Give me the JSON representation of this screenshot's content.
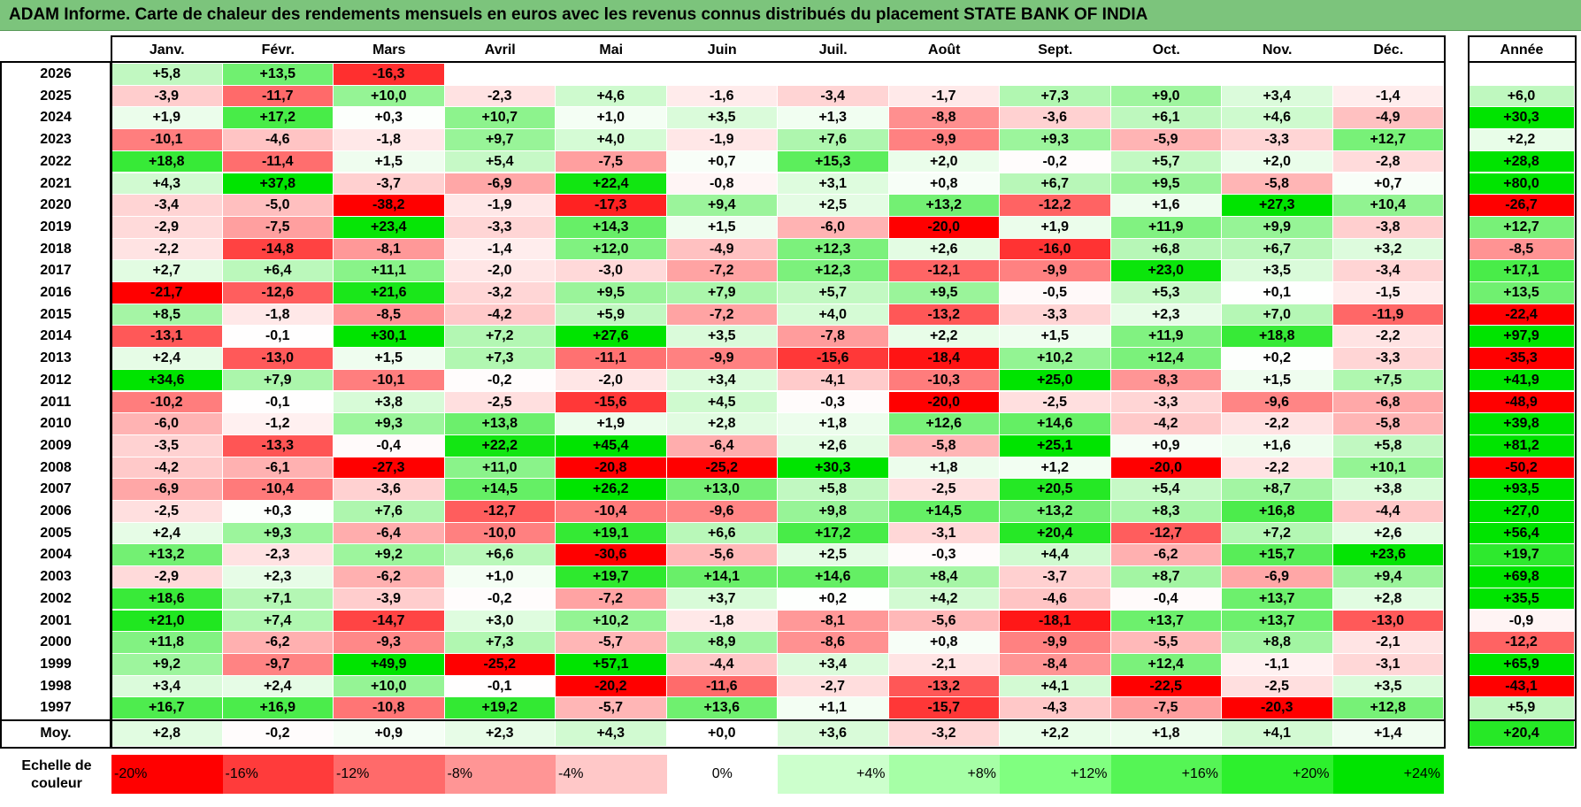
{
  "title": "ADAM Informe. Carte de chaleur des rendements mensuels en euros avec les revenus connus distribués du placement STATE BANK OF INDIA",
  "chart_data": {
    "type": "heatmap",
    "title": "ADAM Informe. Carte de chaleur des rendements mensuels en euros avec les revenus connus distribués du placement STATE BANK OF INDIA",
    "months": [
      "Janv.",
      "Févr.",
      "Mars",
      "Avril",
      "Mai",
      "Juin",
      "Juil.",
      "Août",
      "Sept.",
      "Oct.",
      "Nov.",
      "Déc."
    ],
    "year_header": "Année",
    "rows": [
      {
        "year": "2026",
        "months": [
          "+5,8",
          "+13,5",
          "-16,3",
          "",
          "",
          "",
          "",
          "",
          "",
          "",
          "",
          ""
        ],
        "annual": ""
      },
      {
        "year": "2025",
        "months": [
          "-3,9",
          "-11,7",
          "+10,0",
          "-2,3",
          "+4,6",
          "-1,6",
          "-3,4",
          "-1,7",
          "+7,3",
          "+9,0",
          "+3,4",
          "-1,4"
        ],
        "annual": "+6,0"
      },
      {
        "year": "2024",
        "months": [
          "+1,9",
          "+17,2",
          "+0,3",
          "+10,7",
          "+1,0",
          "+3,5",
          "+1,3",
          "-8,8",
          "-3,6",
          "+6,1",
          "+4,6",
          "-4,9"
        ],
        "annual": "+30,3"
      },
      {
        "year": "2023",
        "months": [
          "-10,1",
          "-4,6",
          "-1,8",
          "+9,7",
          "+4,0",
          "-1,9",
          "+7,6",
          "-9,9",
          "+9,3",
          "-5,9",
          "-3,3",
          "+12,7"
        ],
        "annual": "+2,2"
      },
      {
        "year": "2022",
        "months": [
          "+18,8",
          "-11,4",
          "+1,5",
          "+5,4",
          "-7,5",
          "+0,7",
          "+15,3",
          "+2,0",
          "-0,2",
          "+5,7",
          "+2,0",
          "-2,8"
        ],
        "annual": "+28,8"
      },
      {
        "year": "2021",
        "months": [
          "+4,3",
          "+37,8",
          "-3,7",
          "-6,9",
          "+22,4",
          "-0,8",
          "+3,1",
          "+0,8",
          "+6,7",
          "+9,5",
          "-5,8",
          "+0,7"
        ],
        "annual": "+80,0"
      },
      {
        "year": "2020",
        "months": [
          "-3,4",
          "-5,0",
          "-38,2",
          "-1,9",
          "-17,3",
          "+9,4",
          "+2,5",
          "+13,2",
          "-12,2",
          "+1,6",
          "+27,3",
          "+10,4"
        ],
        "annual": "-26,7"
      },
      {
        "year": "2019",
        "months": [
          "-2,9",
          "-7,5",
          "+23,4",
          "-3,3",
          "+14,3",
          "+1,5",
          "-6,0",
          "-20,0",
          "+1,9",
          "+11,9",
          "+9,9",
          "-3,8"
        ],
        "annual": "+12,7"
      },
      {
        "year": "2018",
        "months": [
          "-2,2",
          "-14,8",
          "-8,1",
          "-1,4",
          "+12,0",
          "-4,9",
          "+12,3",
          "+2,6",
          "-16,0",
          "+6,8",
          "+6,7",
          "+3,2"
        ],
        "annual": "-8,5"
      },
      {
        "year": "2017",
        "months": [
          "+2,7",
          "+6,4",
          "+11,1",
          "-2,0",
          "-3,0",
          "-7,2",
          "+12,3",
          "-12,1",
          "-9,9",
          "+23,0",
          "+3,5",
          "-3,4"
        ],
        "annual": "+17,1"
      },
      {
        "year": "2016",
        "months": [
          "-21,7",
          "-12,6",
          "+21,6",
          "-3,2",
          "+9,5",
          "+7,9",
          "+5,7",
          "+9,5",
          "-0,5",
          "+5,3",
          "+0,1",
          "-1,5"
        ],
        "annual": "+13,5"
      },
      {
        "year": "2015",
        "months": [
          "+8,5",
          "-1,8",
          "-8,5",
          "-4,2",
          "+5,9",
          "-7,2",
          "+4,0",
          "-13,2",
          "-3,3",
          "+2,3",
          "+7,0",
          "-11,9"
        ],
        "annual": "-22,4"
      },
      {
        "year": "2014",
        "months": [
          "-13,1",
          "-0,1",
          "+30,1",
          "+7,2",
          "+27,6",
          "+3,5",
          "-7,8",
          "+2,2",
          "+1,5",
          "+11,9",
          "+18,8",
          "-2,2"
        ],
        "annual": "+97,9"
      },
      {
        "year": "2013",
        "months": [
          "+2,4",
          "-13,0",
          "+1,5",
          "+7,3",
          "-11,1",
          "-9,9",
          "-15,6",
          "-18,4",
          "+10,2",
          "+12,4",
          "+0,2",
          "-3,3"
        ],
        "annual": "-35,3"
      },
      {
        "year": "2012",
        "months": [
          "+34,6",
          "+7,9",
          "-10,1",
          "-0,2",
          "-2,0",
          "+3,4",
          "-4,1",
          "-10,3",
          "+25,0",
          "-8,3",
          "+1,5",
          "+7,5"
        ],
        "annual": "+41,9"
      },
      {
        "year": "2011",
        "months": [
          "-10,2",
          "-0,1",
          "+3,8",
          "-2,5",
          "-15,6",
          "+4,5",
          "-0,3",
          "-20,0",
          "-2,5",
          "-3,3",
          "-9,6",
          "-6,8"
        ],
        "annual": "-48,9"
      },
      {
        "year": "2010",
        "months": [
          "-6,0",
          "-1,2",
          "+9,3",
          "+13,8",
          "+1,9",
          "+2,8",
          "+1,8",
          "+12,6",
          "+14,6",
          "-4,2",
          "-2,2",
          "-5,8"
        ],
        "annual": "+39,8"
      },
      {
        "year": "2009",
        "months": [
          "-3,5",
          "-13,3",
          "-0,4",
          "+22,2",
          "+45,4",
          "-6,4",
          "+2,6",
          "-5,8",
          "+25,1",
          "+0,9",
          "+1,6",
          "+5,8"
        ],
        "annual": "+81,2"
      },
      {
        "year": "2008",
        "months": [
          "-4,2",
          "-6,1",
          "-27,3",
          "+11,0",
          "-20,8",
          "-25,2",
          "+30,3",
          "+1,8",
          "+1,2",
          "-20,0",
          "-2,2",
          "+10,1"
        ],
        "annual": "-50,2"
      },
      {
        "year": "2007",
        "months": [
          "-6,9",
          "-10,4",
          "-3,6",
          "+14,5",
          "+26,2",
          "+13,0",
          "+5,8",
          "-2,5",
          "+20,5",
          "+5,4",
          "+8,7",
          "+3,8"
        ],
        "annual": "+93,5"
      },
      {
        "year": "2006",
        "months": [
          "-2,5",
          "+0,3",
          "+7,6",
          "-12,7",
          "-10,4",
          "-9,6",
          "+9,8",
          "+14,5",
          "+13,2",
          "+8,3",
          "+16,8",
          "-4,4"
        ],
        "annual": "+27,0"
      },
      {
        "year": "2005",
        "months": [
          "+2,4",
          "+9,3",
          "-6,4",
          "-10,0",
          "+19,1",
          "+6,6",
          "+17,2",
          "-3,1",
          "+20,4",
          "-12,7",
          "+7,2",
          "+2,6"
        ],
        "annual": "+56,4"
      },
      {
        "year": "2004",
        "months": [
          "+13,2",
          "-2,3",
          "+9,2",
          "+6,6",
          "-30,6",
          "-5,6",
          "+2,5",
          "-0,3",
          "+4,4",
          "-6,2",
          "+15,7",
          "+23,6"
        ],
        "annual": "+19,7"
      },
      {
        "year": "2003",
        "months": [
          "-2,9",
          "+2,3",
          "-6,2",
          "+1,0",
          "+19,7",
          "+14,1",
          "+14,6",
          "+8,4",
          "-3,7",
          "+8,7",
          "-6,9",
          "+9,4"
        ],
        "annual": "+69,8"
      },
      {
        "year": "2002",
        "months": [
          "+18,6",
          "+7,1",
          "-3,9",
          "-0,2",
          "-7,2",
          "+3,7",
          "+0,2",
          "+4,2",
          "-4,6",
          "-0,4",
          "+13,7",
          "+2,8"
        ],
        "annual": "+35,5"
      },
      {
        "year": "2001",
        "months": [
          "+21,0",
          "+7,4",
          "-14,7",
          "+3,0",
          "+10,2",
          "-1,8",
          "-8,1",
          "-5,6",
          "-18,1",
          "+13,7",
          "+13,7",
          "-13,0"
        ],
        "annual": "-0,9"
      },
      {
        "year": "2000",
        "months": [
          "+11,8",
          "-6,2",
          "-9,3",
          "+7,3",
          "-5,7",
          "+8,9",
          "-8,6",
          "+0,8",
          "-9,9",
          "-5,5",
          "+8,8",
          "-2,1"
        ],
        "annual": "-12,2"
      },
      {
        "year": "1999",
        "months": [
          "+9,2",
          "-9,7",
          "+49,9",
          "-25,2",
          "+57,1",
          "-4,4",
          "+3,4",
          "-2,1",
          "-8,4",
          "+12,4",
          "-1,1",
          "-3,1"
        ],
        "annual": "+65,9"
      },
      {
        "year": "1998",
        "months": [
          "+3,4",
          "+2,4",
          "+10,0",
          "-0,1",
          "-20,2",
          "-11,6",
          "-2,7",
          "-13,2",
          "+4,1",
          "-22,5",
          "-2,5",
          "+3,5"
        ],
        "annual": "-43,1"
      },
      {
        "year": "1997",
        "months": [
          "+16,7",
          "+16,9",
          "-10,8",
          "+19,2",
          "-5,7",
          "+13,6",
          "+1,1",
          "-15,7",
          "-4,3",
          "-7,5",
          "-20,3",
          "+12,8"
        ],
        "annual": "+5,9"
      }
    ],
    "average": {
      "label": "Moy.",
      "months": [
        "+2,8",
        "-0,2",
        "+0,9",
        "+2,3",
        "+4,3",
        "+0,0",
        "+3,6",
        "-3,2",
        "+2,2",
        "+1,8",
        "+4,1",
        "+1,4"
      ],
      "annual": "+20,4"
    },
    "color_scale": {
      "label": "Echelle de couleur",
      "stops": [
        "-20%",
        "-16%",
        "-12%",
        "-8%",
        "-4%",
        "0%",
        "+4%",
        "+8%",
        "+12%",
        "+16%",
        "+20%",
        "+24%"
      ],
      "colors": [
        "#ff0000",
        "#ff3b3b",
        "#ff6a6a",
        "#ff9595",
        "#ffc8c8",
        "#ffffff",
        "#ccffcc",
        "#a6ffa6",
        "#80ff80",
        "#55f555",
        "#2df02d",
        "#00e400"
      ]
    }
  }
}
